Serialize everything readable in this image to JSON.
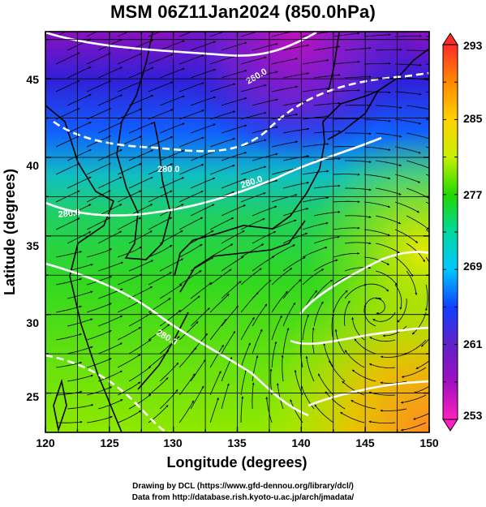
{
  "title": "MSM 06Z11Jan2024 (850.0hPa)",
  "map": {
    "xlabel": "Longitude (degrees)",
    "ylabel": "Latitude  (degrees)",
    "lon_range": [
      120,
      150
    ],
    "lat_range": [
      22.5,
      48
    ],
    "lon_ticks": [
      "120",
      "125",
      "130",
      "135",
      "140",
      "145",
      "150"
    ],
    "lat_ticks": [
      "25",
      "30",
      "35",
      "40",
      "45"
    ],
    "gridlines": true,
    "field": "temperature (K)",
    "overlay": "streamlines and isotherms"
  },
  "colorbar": {
    "min": 253,
    "max": 293,
    "tick_labels": [
      "293",
      "285",
      "277",
      "269",
      "261",
      "253"
    ],
    "colors": [
      "#ff2a2a",
      "#ff8a00",
      "#ffd200",
      "#c8f000",
      "#22d800",
      "#00d8a0",
      "#00c8ff",
      "#1040ff",
      "#6020c8",
      "#a010c0",
      "#ff20c0"
    ]
  },
  "contours": {
    "labels": [
      "260.0",
      "280.0",
      "280.0",
      "280.0",
      "280.0"
    ],
    "color": "#ffffff"
  },
  "credits": {
    "line1": "Drawing by DCL (https://www.gfd-dennou.org/library/dcl/)",
    "line2": "Data from http://database.rish.kyoto-u.ac.jp/arch/jmadata/"
  }
}
